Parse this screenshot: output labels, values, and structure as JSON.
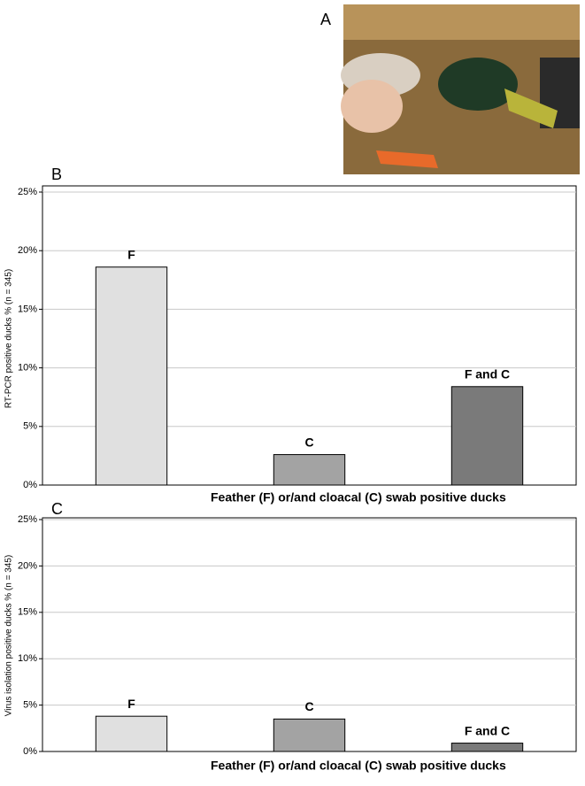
{
  "photo": {
    "panel_label": "A"
  },
  "chart_data": [
    {
      "type": "bar",
      "panel_label": "B",
      "y_label": "RT-PCR positive ducks % (n = 345)",
      "x_label": "Feather (F) or/and cloacal (C) swab positive ducks",
      "categories": [
        "F",
        "C",
        "F and C"
      ],
      "values": [
        18.6,
        2.6,
        8.4
      ],
      "colors": [
        "#e0e0e0",
        "#a3a3a3",
        "#7a7a7a"
      ],
      "ylim": [
        0,
        25
      ],
      "yticks": [
        {
          "value": 0,
          "label": "0%"
        },
        {
          "value": 5,
          "label": "5%"
        },
        {
          "value": 10,
          "label": "10%"
        },
        {
          "value": 15,
          "label": "15%"
        },
        {
          "value": 20,
          "label": "20%"
        },
        {
          "value": 25,
          "label": "25%"
        }
      ],
      "grid": true
    },
    {
      "type": "bar",
      "panel_label": "C",
      "y_label": "Virus isolation positive ducks % (n = 345)",
      "x_label": "Feather (F) or/and cloacal (C) swab positive ducks",
      "categories": [
        "F",
        "C",
        "F and C"
      ],
      "values": [
        3.8,
        3.5,
        0.9
      ],
      "colors": [
        "#e0e0e0",
        "#a3a3a3",
        "#7a7a7a"
      ],
      "ylim": [
        0,
        25
      ],
      "yticks": [
        {
          "value": 0,
          "label": "0%"
        },
        {
          "value": 5,
          "label": "5%"
        },
        {
          "value": 10,
          "label": "10%"
        },
        {
          "value": 15,
          "label": "15%"
        },
        {
          "value": 20,
          "label": "20%"
        },
        {
          "value": 25,
          "label": "25%"
        }
      ],
      "grid": true
    }
  ]
}
